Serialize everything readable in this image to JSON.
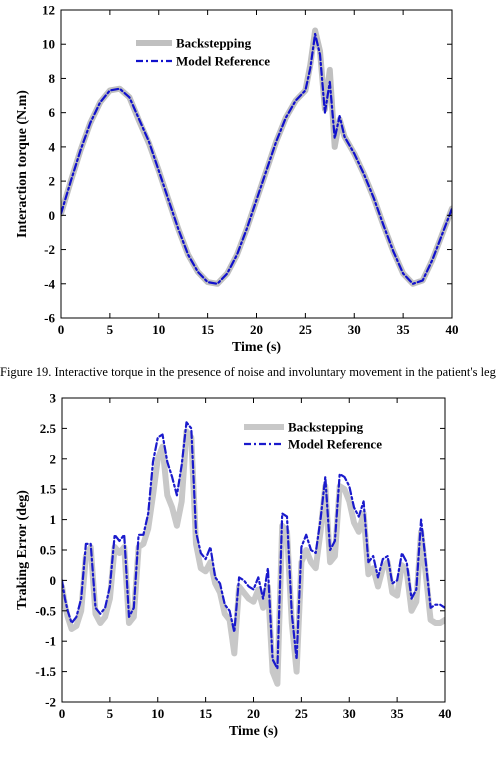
{
  "chart_data": [
    {
      "type": "line",
      "title": "",
      "xlabel": "Time (s)",
      "ylabel": "Interaction torque (N.m)",
      "xlim": [
        0,
        40
      ],
      "ylim": [
        -6,
        12
      ],
      "xticks": [
        "0",
        "5",
        "10",
        "15",
        "20",
        "25",
        "30",
        "35",
        "40"
      ],
      "yticks": [
        "-6",
        "-4",
        "-2",
        "0",
        "2",
        "4",
        "6",
        "8",
        "10",
        "12"
      ],
      "grid": false,
      "legend_position": "top-right",
      "series": [
        {
          "name": "Backstepping",
          "color": "#c0c0c0",
          "style": "solid-thick",
          "x": [
            0,
            1,
            2,
            3,
            4,
            5,
            6,
            7,
            8,
            9,
            10,
            11,
            12,
            13,
            14,
            15,
            16,
            17,
            18,
            19,
            20,
            21,
            22,
            23,
            24,
            25,
            25.5,
            26,
            26.5,
            27,
            27.5,
            28,
            28.5,
            29,
            30,
            31,
            32,
            33,
            34,
            35,
            36,
            37,
            38,
            39,
            40
          ],
          "y": [
            0.1,
            2.0,
            3.8,
            5.4,
            6.6,
            7.3,
            7.4,
            6.9,
            5.5,
            4.2,
            2.6,
            0.9,
            -0.8,
            -2.3,
            -3.3,
            -3.9,
            -4.0,
            -3.4,
            -2.3,
            -0.8,
            0.9,
            2.6,
            4.3,
            5.7,
            6.7,
            7.3,
            8.8,
            10.8,
            9.6,
            6.2,
            8.5,
            4.0,
            5.6,
            4.6,
            3.6,
            2.4,
            1.0,
            -0.6,
            -2.1,
            -3.4,
            -4.0,
            -3.8,
            -2.6,
            -1.1,
            0.4
          ]
        },
        {
          "name": "Model Reference",
          "color": "#1111cc",
          "style": "dash-dot",
          "x": [
            0,
            1,
            2,
            3,
            4,
            5,
            6,
            7,
            8,
            9,
            10,
            11,
            12,
            13,
            14,
            15,
            16,
            17,
            18,
            19,
            20,
            21,
            22,
            23,
            24,
            25,
            25.5,
            26,
            26.5,
            27,
            27.5,
            28,
            28.5,
            29,
            30,
            31,
            32,
            33,
            34,
            35,
            36,
            37,
            38,
            39,
            40
          ],
          "y": [
            0.1,
            2.0,
            3.8,
            5.4,
            6.6,
            7.3,
            7.4,
            6.9,
            5.6,
            4.3,
            2.6,
            0.9,
            -0.8,
            -2.3,
            -3.3,
            -3.9,
            -4.0,
            -3.4,
            -2.3,
            -0.8,
            0.9,
            2.6,
            4.3,
            5.7,
            6.7,
            7.3,
            8.6,
            10.6,
            9.4,
            6.0,
            7.8,
            4.5,
            5.8,
            4.6,
            3.6,
            2.4,
            1.0,
            -0.6,
            -2.1,
            -3.4,
            -4.0,
            -3.8,
            -2.6,
            -1.1,
            0.4
          ]
        }
      ]
    },
    {
      "type": "line",
      "title": "",
      "xlabel": "Time (s)",
      "ylabel": "Traking Error (deg)",
      "xlim": [
        0,
        40
      ],
      "ylim": [
        -2,
        3
      ],
      "xticks": [
        "0",
        "5",
        "10",
        "15",
        "20",
        "25",
        "30",
        "35",
        "40"
      ],
      "yticks": [
        "-2",
        "-1.5",
        "-1",
        "-0.5",
        "0",
        "0.5",
        "1",
        "1.5",
        "2",
        "2.5",
        "3"
      ],
      "grid": false,
      "legend_position": "top-right",
      "series": [
        {
          "name": "Backstepping",
          "color": "#c8c8c8",
          "style": "solid-thick",
          "x": [
            0,
            0.3,
            0.6,
            1,
            1.5,
            2,
            2.5,
            3,
            3.5,
            4,
            4.5,
            5,
            5.5,
            6,
            6.5,
            7,
            7.5,
            8,
            8.5,
            9,
            9.5,
            10,
            10.5,
            11,
            11.5,
            12,
            12.5,
            13,
            13.5,
            14,
            14.5,
            15,
            15.5,
            16,
            16.5,
            17,
            17.5,
            18,
            18.5,
            19,
            19.5,
            20,
            20.5,
            21,
            21.5,
            22,
            22.5,
            23,
            23.5,
            24,
            24.5,
            25,
            25.5,
            26,
            26.5,
            27,
            27.5,
            28,
            28.5,
            29,
            29.5,
            30,
            30.5,
            31,
            31.5,
            32,
            32.5,
            33,
            33.5,
            34,
            34.5,
            35,
            35.5,
            36,
            36.5,
            37,
            37.5,
            38,
            38.5,
            39,
            39.5,
            40
          ],
          "y": [
            -0.1,
            -0.4,
            -0.6,
            -0.8,
            -0.75,
            -0.5,
            0.4,
            0.55,
            -0.55,
            -0.7,
            -0.6,
            -0.3,
            0.55,
            0.45,
            0.55,
            -0.7,
            -0.6,
            0.55,
            0.6,
            0.85,
            1.4,
            2.0,
            2.2,
            1.4,
            1.2,
            0.9,
            1.3,
            2.45,
            2.35,
            0.6,
            0.2,
            0.15,
            0.3,
            -0.05,
            -0.2,
            -0.55,
            -0.65,
            -1.2,
            -0.1,
            -0.2,
            -0.3,
            -0.35,
            -0.15,
            -0.45,
            -0.1,
            -1.5,
            -1.7,
            0.9,
            0.8,
            -0.7,
            -1.5,
            0.3,
            0.5,
            0.3,
            0.2,
            0.8,
            1.55,
            0.3,
            0.4,
            1.55,
            1.5,
            1.3,
            0.95,
            0.8,
            1.1,
            0.1,
            0.2,
            -0.1,
            0.2,
            0.3,
            -0.2,
            -0.25,
            0.25,
            0.15,
            -0.5,
            -0.35,
            0.8,
            0.1,
            -0.65,
            -0.7,
            -0.7,
            -0.65
          ]
        },
        {
          "name": "Model Reference",
          "color": "#1a1acc",
          "style": "dash-dot",
          "x": [
            0,
            0.3,
            0.6,
            1,
            1.5,
            2,
            2.5,
            3,
            3.5,
            4,
            4.5,
            5,
            5.5,
            6,
            6.5,
            7,
            7.5,
            8,
            8.5,
            9,
            9.5,
            10,
            10.5,
            11,
            11.5,
            12,
            12.5,
            13,
            13.5,
            14,
            14.5,
            15,
            15.5,
            16,
            16.5,
            17,
            17.5,
            18,
            18.5,
            19,
            19.5,
            20,
            20.5,
            21,
            21.5,
            22,
            22.5,
            23,
            23.5,
            24,
            24.5,
            25,
            25.5,
            26,
            26.5,
            27,
            27.5,
            28,
            28.5,
            29,
            29.5,
            30,
            30.5,
            31,
            31.5,
            32,
            32.5,
            33,
            33.5,
            34,
            34.5,
            35,
            35.5,
            36,
            36.5,
            37,
            37.5,
            38,
            38.5,
            39,
            39.5,
            40
          ],
          "y": [
            0.0,
            -0.3,
            -0.5,
            -0.7,
            -0.6,
            -0.3,
            0.6,
            0.6,
            -0.45,
            -0.55,
            -0.45,
            -0.1,
            0.75,
            0.65,
            0.75,
            -0.6,
            -0.45,
            0.75,
            0.75,
            1.1,
            1.95,
            2.35,
            2.4,
            1.95,
            1.7,
            1.4,
            1.9,
            2.6,
            2.5,
            0.8,
            0.45,
            0.35,
            0.55,
            0.05,
            -0.05,
            -0.4,
            -0.5,
            -0.85,
            0.05,
            0.0,
            -0.1,
            -0.15,
            0.05,
            -0.3,
            0.2,
            -1.3,
            -1.45,
            1.1,
            1.05,
            -0.55,
            -1.3,
            0.55,
            0.75,
            0.5,
            0.45,
            1.0,
            1.7,
            0.5,
            0.65,
            1.75,
            1.7,
            1.55,
            1.2,
            1.05,
            1.3,
            0.3,
            0.4,
            0.05,
            0.35,
            0.4,
            -0.05,
            0.0,
            0.45,
            0.3,
            -0.3,
            -0.15,
            1.0,
            0.3,
            -0.45,
            -0.4,
            -0.4,
            -0.45
          ]
        }
      ]
    }
  ],
  "captions": {
    "fig19": "Figure 19. Interactive torque in the presence of noise and involuntary movement in the patient's leg"
  }
}
